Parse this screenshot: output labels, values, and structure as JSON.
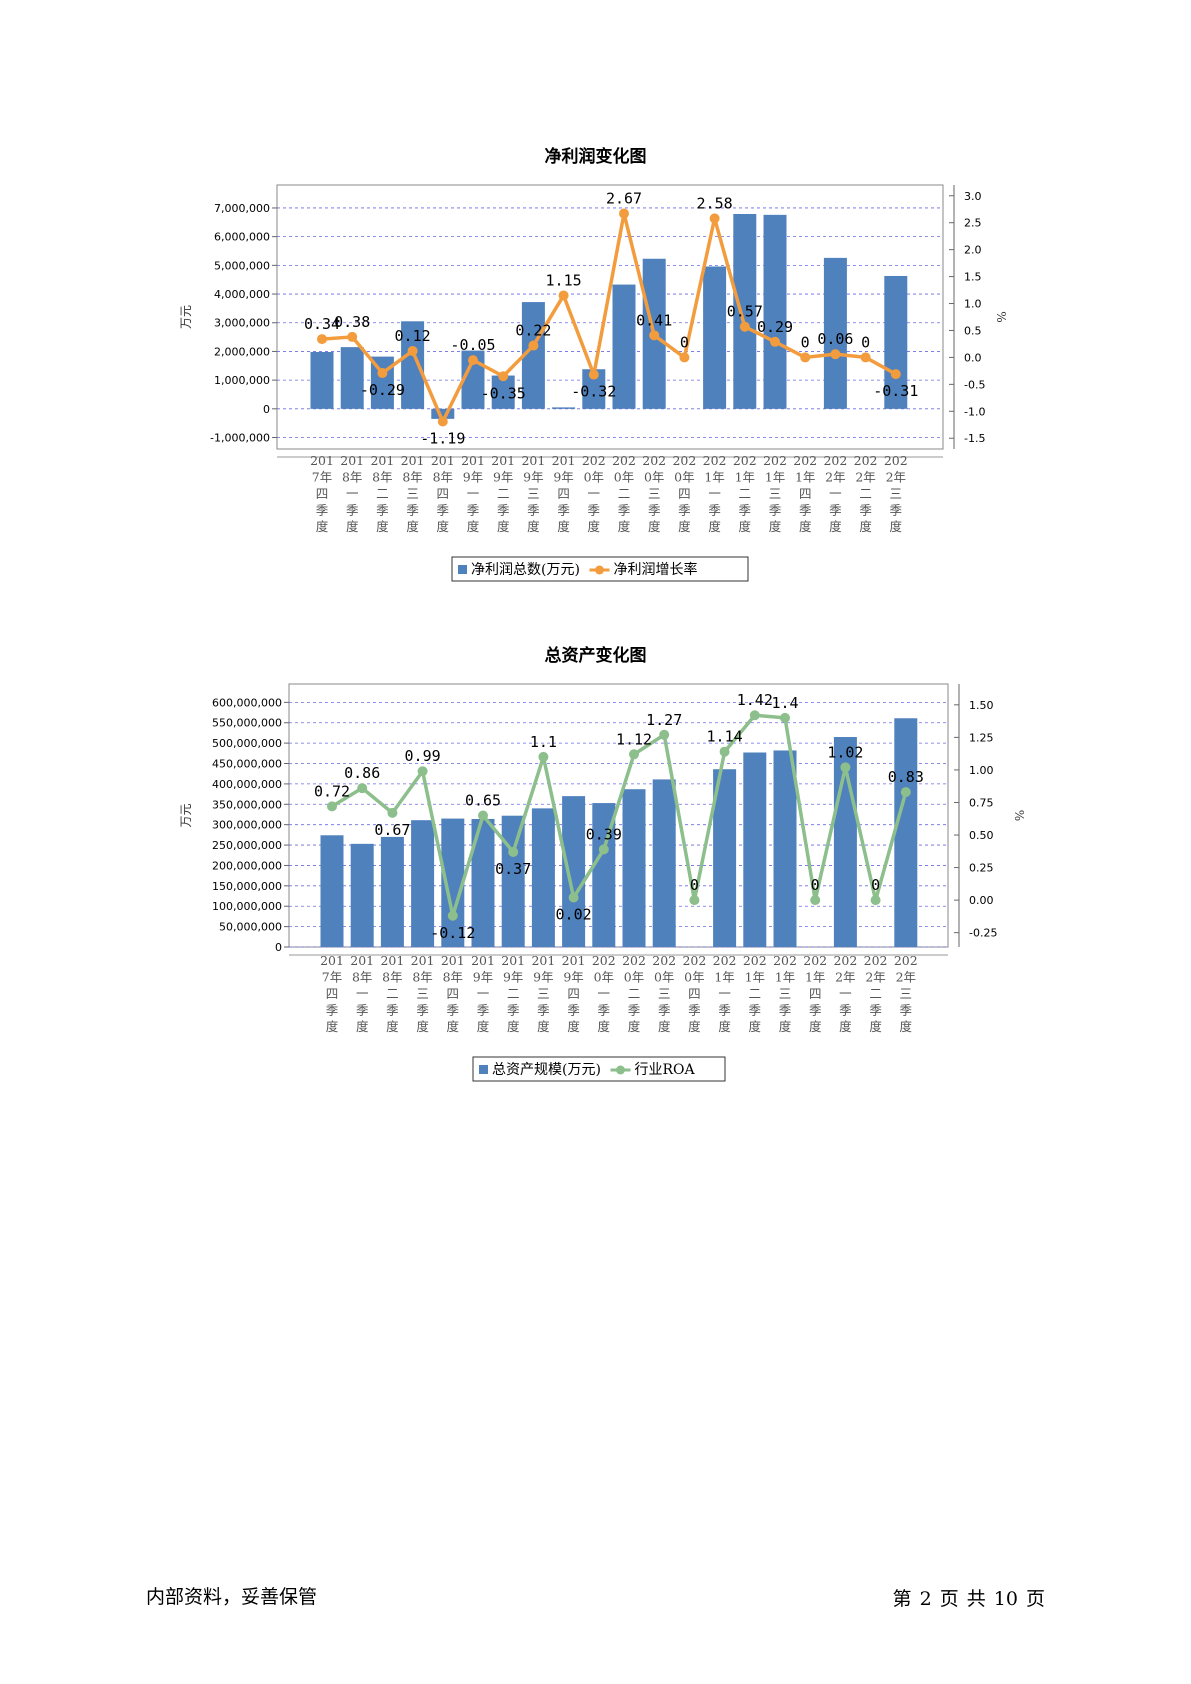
{
  "categories_note": "",
  "footer": {
    "left": "内部资料，妥善保管",
    "right": "第 2 页   共 10 页"
  },
  "chart_data": [
    {
      "type": "bar",
      "title": "净利润变化图",
      "categories": [
        [
          "201",
          "7年",
          "四",
          "季",
          "度"
        ],
        [
          "201",
          "8年",
          "一",
          "季",
          "度"
        ],
        [
          "201",
          "8年",
          "二",
          "季",
          "度"
        ],
        [
          "201",
          "8年",
          "三",
          "季",
          "度"
        ],
        [
          "201",
          "8年",
          "四",
          "季",
          "度"
        ],
        [
          "201",
          "9年",
          "一",
          "季",
          "度"
        ],
        [
          "201",
          "9年",
          "二",
          "季",
          "度"
        ],
        [
          "201",
          "9年",
          "三",
          "季",
          "度"
        ],
        [
          "201",
          "9年",
          "四",
          "季",
          "度"
        ],
        [
          "202",
          "0年",
          "一",
          "季",
          "度"
        ],
        [
          "202",
          "0年",
          "二",
          "季",
          "度"
        ],
        [
          "202",
          "0年",
          "三",
          "季",
          "度"
        ],
        [
          "202",
          "0年",
          "四",
          "季",
          "度"
        ],
        [
          "202",
          "1年",
          "一",
          "季",
          "度"
        ],
        [
          "202",
          "1年",
          "二",
          "季",
          "度"
        ],
        [
          "202",
          "1年",
          "三",
          "季",
          "度"
        ],
        [
          "202",
          "1年",
          "四",
          "季",
          "度"
        ],
        [
          "202",
          "2年",
          "一",
          "季",
          "度"
        ],
        [
          "202",
          "2年",
          "二",
          "季",
          "度"
        ],
        [
          "202",
          "2年",
          "三",
          "季",
          "度"
        ]
      ],
      "ylabel": "万元",
      "y2label": "%",
      "yticks": [
        "7,000,000",
        "6,000,000",
        "5,000,000",
        "4,000,000",
        "3,000,000",
        "2,000,000",
        "1,000,000",
        "0",
        "-1,000,000"
      ],
      "y2ticks": [
        "3.0",
        "2.5",
        "2.0",
        "1.5",
        "1.0",
        "0.5",
        "0.0",
        "-0.5",
        "-1.0",
        "-1.5"
      ],
      "ylim": [
        -1400000,
        7800000
      ],
      "y2lim": [
        -1.7,
        3.2
      ],
      "series": [
        {
          "name": "净利润总数(万元)",
          "kind": "bar",
          "color": "#4f81bd",
          "values": [
            1980000,
            2150000,
            1820000,
            3050000,
            -350000,
            2030000,
            1160000,
            3720000,
            50000,
            1380000,
            4330000,
            5230000,
            null,
            4960000,
            6790000,
            6760000,
            null,
            5260000,
            null,
            4630000
          ]
        },
        {
          "name": "净利润增长率",
          "kind": "line",
          "color": "#f39c3d",
          "values": [
            0.34,
            0.38,
            -0.29,
            0.12,
            -1.19,
            -0.05,
            -0.35,
            0.22,
            1.15,
            -0.32,
            2.67,
            0.41,
            0,
            2.58,
            0.57,
            0.29,
            0,
            0.06,
            0,
            -0.31
          ],
          "labels": [
            "0.34",
            "0.38",
            "-0.29",
            "0.12",
            "-1.19",
            "-0.05",
            "-0.35",
            "0.22",
            "1.15",
            "-0.32",
            "2.67",
            "0.41",
            "0",
            "2.58",
            "0.57",
            "0.29",
            "0",
            "0.06",
            "0",
            "-0.31"
          ]
        }
      ],
      "legend_position": "bottom",
      "grid": true
    },
    {
      "type": "bar",
      "title": "总资产变化图",
      "categories": [
        [
          "201",
          "7年",
          "四",
          "季",
          "度"
        ],
        [
          "201",
          "8年",
          "一",
          "季",
          "度"
        ],
        [
          "201",
          "8年",
          "二",
          "季",
          "度"
        ],
        [
          "201",
          "8年",
          "三",
          "季",
          "度"
        ],
        [
          "201",
          "8年",
          "四",
          "季",
          "度"
        ],
        [
          "201",
          "9年",
          "一",
          "季",
          "度"
        ],
        [
          "201",
          "9年",
          "二",
          "季",
          "度"
        ],
        [
          "201",
          "9年",
          "三",
          "季",
          "度"
        ],
        [
          "201",
          "9年",
          "四",
          "季",
          "度"
        ],
        [
          "202",
          "0年",
          "一",
          "季",
          "度"
        ],
        [
          "202",
          "0年",
          "二",
          "季",
          "度"
        ],
        [
          "202",
          "0年",
          "三",
          "季",
          "度"
        ],
        [
          "202",
          "0年",
          "四",
          "季",
          "度"
        ],
        [
          "202",
          "1年",
          "一",
          "季",
          "度"
        ],
        [
          "202",
          "1年",
          "二",
          "季",
          "度"
        ],
        [
          "202",
          "1年",
          "三",
          "季",
          "度"
        ],
        [
          "202",
          "1年",
          "四",
          "季",
          "度"
        ],
        [
          "202",
          "2年",
          "一",
          "季",
          "度"
        ],
        [
          "202",
          "2年",
          "二",
          "季",
          "度"
        ],
        [
          "202",
          "2年",
          "三",
          "季",
          "度"
        ]
      ],
      "ylabel": "万元",
      "y2label": "%",
      "yticks": [
        "600,000,000",
        "550,000,000",
        "500,000,000",
        "450,000,000",
        "400,000,000",
        "350,000,000",
        "300,000,000",
        "250,000,000",
        "200,000,000",
        "150,000,000",
        "100,000,000",
        "50,000,000",
        "0"
      ],
      "y2ticks": [
        "1.50",
        "1.25",
        "1.00",
        "0.75",
        "0.50",
        "0.25",
        "0.00",
        "-0.25"
      ],
      "ylim": [
        0,
        645000000
      ],
      "y2lim": [
        -0.36,
        1.66
      ],
      "series": [
        {
          "name": "总资产规模(万元)",
          "kind": "bar",
          "color": "#4f81bd",
          "values": [
            274000000,
            253000000,
            270000000,
            311000000,
            315000000,
            314000000,
            322000000,
            340000000,
            370000000,
            353000000,
            387000000,
            411000000,
            null,
            436000000,
            477000000,
            482000000,
            null,
            515000000,
            null,
            561000000
          ]
        },
        {
          "name": "行业ROA",
          "kind": "line",
          "color": "#8cbf8c",
          "values": [
            0.72,
            0.86,
            0.67,
            0.99,
            -0.12,
            0.65,
            0.37,
            1.1,
            0.02,
            0.39,
            1.12,
            1.27,
            0,
            1.14,
            1.42,
            1.4,
            0,
            1.02,
            0,
            0.83
          ],
          "labels": [
            "0.72",
            "0.86",
            "0.67",
            "0.99",
            "-0.12",
            "0.65",
            "0.37",
            "1.1",
            "0.02",
            "0.39",
            "1.12",
            "1.27",
            "0",
            "1.14",
            "1.42",
            "1.4",
            "0",
            "1.02",
            "0",
            "0.83"
          ]
        }
      ],
      "legend_position": "bottom",
      "grid": true
    }
  ]
}
